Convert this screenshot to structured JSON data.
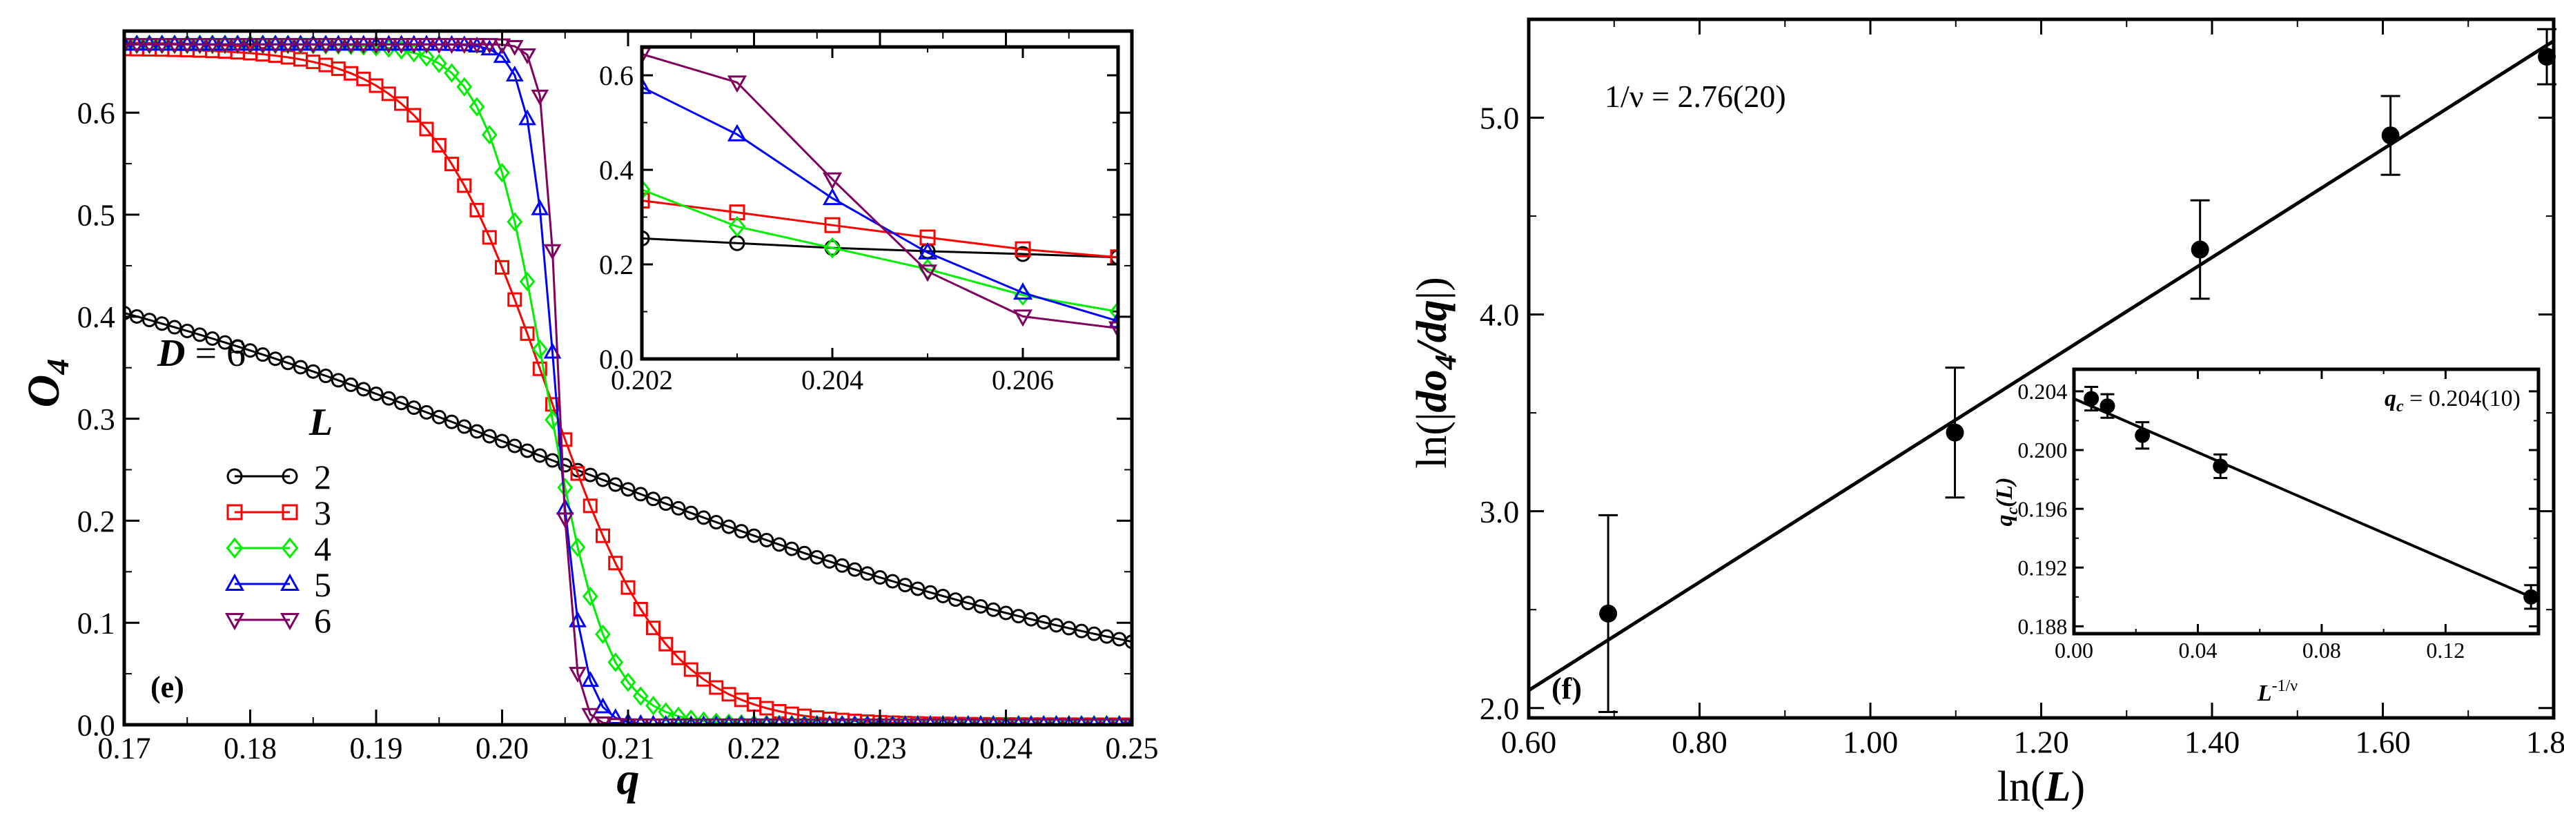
{
  "figure": {
    "description_panels": [
      "e",
      "f"
    ]
  },
  "chart_data": [
    {
      "id": "panel-e",
      "type": "line",
      "panel_label": "(e)",
      "annotation": {
        "D_label": "D",
        "D_equals": "= 6"
      },
      "xlabel": "q",
      "ylabel": "O",
      "ylabel_subscript": "4",
      "xlim": [
        0.17,
        0.25
      ],
      "ylim": [
        0.0,
        0.68
      ],
      "xticks": [
        0.17,
        0.18,
        0.19,
        0.2,
        0.21,
        0.22,
        0.23,
        0.24,
        0.25
      ],
      "xtick_labels": [
        "0.17",
        "0.18",
        "0.19",
        "0.20",
        "0.21",
        "0.22",
        "0.23",
        "0.24",
        "0.25"
      ],
      "yticks": [
        0.0,
        0.1,
        0.2,
        0.3,
        0.4,
        0.5,
        0.6
      ],
      "ytick_labels": [
        "0.0",
        "0.1",
        "0.2",
        "0.3",
        "0.4",
        "0.5",
        "0.6"
      ],
      "legend_title": "L",
      "legend_position": "lower-left",
      "series": [
        {
          "name": "2",
          "color": "#000000",
          "marker": "circle",
          "params": {
            "type": "tanh",
            "a": 0.2615,
            "b": 0.2615,
            "c": 0.2035,
            "w": 0.055
          }
        },
        {
          "name": "3",
          "color": "#ff0000",
          "marker": "square",
          "params": {
            "type": "tanh",
            "a": 0.3315,
            "b": 0.3315,
            "c": 0.2035,
            "w": 0.0095
          }
        },
        {
          "name": "4",
          "color": "#00ee00",
          "marker": "diamond",
          "params": {
            "type": "tanh",
            "a": 0.3335,
            "b": 0.3335,
            "c": 0.2035,
            "w": 0.0048
          }
        },
        {
          "name": "5",
          "color": "#0000ff",
          "marker": "triangle-up",
          "params": {
            "type": "tanh",
            "a": 0.3335,
            "b": 0.3335,
            "c": 0.2042,
            "w": 0.0021
          }
        },
        {
          "name": "6",
          "color": "#800060",
          "marker": "triangle-down",
          "params": {
            "type": "tanh",
            "a": 0.3335,
            "b": 0.3335,
            "c": 0.2045,
            "w": 0.0012
          }
        }
      ],
      "inset": {
        "xlim": [
          0.202,
          0.207
        ],
        "ylim": [
          0.0,
          0.66
        ],
        "xticks": [
          0.202,
          0.204,
          0.206
        ],
        "xtick_labels": [
          "0.202",
          "0.204",
          "0.206"
        ],
        "yticks": [
          0.0,
          0.2,
          0.4,
          0.6
        ],
        "ytick_labels": [
          "0.0",
          "0.2",
          "0.4",
          "0.6"
        ],
        "x": [
          0.202,
          0.203,
          0.204,
          0.205,
          0.206,
          0.207
        ],
        "series": [
          {
            "name": "2",
            "values": [
              0.255,
              0.245,
              0.235,
              0.228,
              0.222,
              0.215
            ]
          },
          {
            "name": "3",
            "values": [
              0.335,
              0.31,
              0.283,
              0.257,
              0.232,
              0.215
            ]
          },
          {
            "name": "4",
            "values": [
              0.358,
              0.28,
              0.235,
              0.19,
              0.135,
              0.1
            ]
          },
          {
            "name": "5",
            "values": [
              0.575,
              0.475,
              0.34,
              0.225,
              0.14,
              0.08
            ]
          },
          {
            "name": "6",
            "values": [
              0.645,
              0.585,
              0.38,
              0.185,
              0.09,
              0.065
            ]
          }
        ]
      }
    },
    {
      "id": "panel-f",
      "type": "scatter",
      "panel_label": "(f)",
      "annotation": "1/ν = 2.76(20)",
      "xlabel_prefix": "ln(",
      "xlabel_var": "L",
      "xlabel_suffix": ")",
      "ylabel_prefix": "ln(|",
      "ylabel_var": "do",
      "ylabel_sub": "4",
      "ylabel_var2": "/dq",
      "ylabel_suffix": "|)",
      "xlim": [
        0.6,
        1.8
      ],
      "ylim": [
        1.95,
        5.5
      ],
      "xticks": [
        0.6,
        0.8,
        1.0,
        1.2,
        1.4,
        1.6,
        1.8
      ],
      "xtick_labels": [
        "0.60",
        "0.80",
        "1.00",
        "1.20",
        "1.40",
        "1.60",
        "1.80"
      ],
      "yticks": [
        2.0,
        3.0,
        4.0,
        5.0
      ],
      "ytick_labels": [
        "2.0",
        "3.0",
        "4.0",
        "5.0"
      ],
      "x": [
        0.693,
        1.099,
        1.386,
        1.609,
        1.792
      ],
      "y": [
        2.48,
        3.4,
        4.33,
        4.91,
        5.31
      ],
      "yerr": [
        0.5,
        0.33,
        0.25,
        0.2,
        0.14
      ],
      "fit_line": {
        "x": [
          0.6,
          1.8
        ],
        "y": [
          2.09,
          5.39
        ]
      },
      "inset": {
        "annotation_var": "q",
        "annotation_sub": "c",
        "annotation_value": " = 0.204(10)",
        "xlabel_var": "L",
        "xlabel_sup": "-1/ν",
        "ylabel_var": "q",
        "ylabel_sub": "c",
        "ylabel_suffix": "(L)",
        "xlim": [
          0.0,
          0.15
        ],
        "ylim": [
          0.1875,
          0.2055
        ],
        "xticks": [
          0.0,
          0.04,
          0.08,
          0.12
        ],
        "xtick_labels": [
          "0.00",
          "0.04",
          "0.08",
          "0.12"
        ],
        "yticks": [
          0.188,
          0.192,
          0.196,
          0.2,
          0.204
        ],
        "ytick_labels": [
          "0.188",
          "0.192",
          "0.196",
          "0.200",
          "0.204"
        ],
        "x": [
          0.0056,
          0.0108,
          0.0221,
          0.0473,
          0.1476
        ],
        "y": [
          0.2035,
          0.203,
          0.201,
          0.1989,
          0.19
        ],
        "yerr": [
          0.0008,
          0.0008,
          0.0009,
          0.0008,
          0.0008
        ],
        "fit_line": {
          "x": [
            0.0,
            0.1476
          ],
          "y": [
            0.2035,
            0.19
          ]
        }
      }
    }
  ]
}
